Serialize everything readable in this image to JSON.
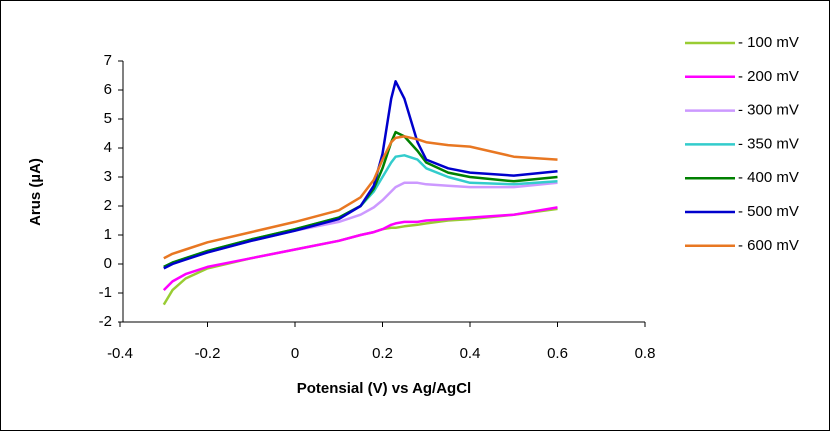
{
  "chart_data": {
    "type": "line",
    "x_label": "Potensial (V) vs Ag/AgCl",
    "y_label": "Arus (µA)",
    "x": [
      -0.3,
      -0.28,
      -0.25,
      -0.2,
      -0.1,
      0,
      0.1,
      0.15,
      0.18,
      0.2,
      0.22,
      0.23,
      0.25,
      0.28,
      0.3,
      0.35,
      0.4,
      0.5,
      0.6
    ],
    "series": [
      {
        "name": "- 100 mV",
        "color": "#99cc33",
        "values": [
          -1.4,
          -0.9,
          -0.5,
          -0.15,
          0.2,
          0.5,
          0.8,
          1.0,
          1.1,
          1.2,
          1.25,
          1.25,
          1.3,
          1.35,
          1.4,
          1.5,
          1.55,
          1.7,
          1.9
        ]
      },
      {
        "name": "- 200 mV",
        "color": "#ff00ff",
        "values": [
          -0.9,
          -0.6,
          -0.35,
          -0.1,
          0.2,
          0.5,
          0.8,
          1.0,
          1.1,
          1.2,
          1.35,
          1.4,
          1.45,
          1.45,
          1.5,
          1.55,
          1.6,
          1.7,
          1.95
        ]
      },
      {
        "name": "- 300 mV",
        "color": "#cc99ff",
        "values": [
          -0.1,
          0.05,
          0.2,
          0.4,
          0.8,
          1.15,
          1.45,
          1.7,
          1.95,
          2.2,
          2.5,
          2.65,
          2.8,
          2.8,
          2.75,
          2.7,
          2.65,
          2.65,
          2.8
        ]
      },
      {
        "name": "- 350 mV",
        "color": "#33cccc",
        "values": [
          -0.1,
          0.05,
          0.2,
          0.45,
          0.85,
          1.2,
          1.6,
          2.0,
          2.5,
          3.0,
          3.5,
          3.7,
          3.75,
          3.6,
          3.3,
          3.0,
          2.8,
          2.75,
          2.85
        ]
      },
      {
        "name": "- 400 mV",
        "color": "#008000",
        "values": [
          -0.1,
          0.05,
          0.2,
          0.45,
          0.85,
          1.2,
          1.6,
          2.0,
          2.6,
          3.3,
          4.2,
          4.55,
          4.4,
          3.9,
          3.5,
          3.15,
          3.0,
          2.85,
          3.0
        ]
      },
      {
        "name": "- 500 mV",
        "color": "#0000cc",
        "values": [
          -0.15,
          0.0,
          0.15,
          0.4,
          0.8,
          1.15,
          1.55,
          2.0,
          2.7,
          3.8,
          5.7,
          6.3,
          5.7,
          4.2,
          3.6,
          3.3,
          3.15,
          3.05,
          3.2
        ]
      },
      {
        "name": "- 600 mV",
        "color": "#e87722",
        "values": [
          0.2,
          0.35,
          0.5,
          0.75,
          1.1,
          1.45,
          1.85,
          2.3,
          2.9,
          3.6,
          4.2,
          4.35,
          4.4,
          4.3,
          4.2,
          4.1,
          4.05,
          3.7,
          3.6
        ]
      }
    ],
    "xlim": [
      -0.4,
      0.8
    ],
    "xticks": [
      -0.4,
      -0.2,
      0,
      0.2,
      0.4,
      0.6,
      0.8
    ],
    "ylim": [
      -2,
      7
    ],
    "yticks": [
      -2,
      -1,
      0,
      1,
      2,
      3,
      4,
      5,
      6,
      7
    ],
    "grid": false
  }
}
